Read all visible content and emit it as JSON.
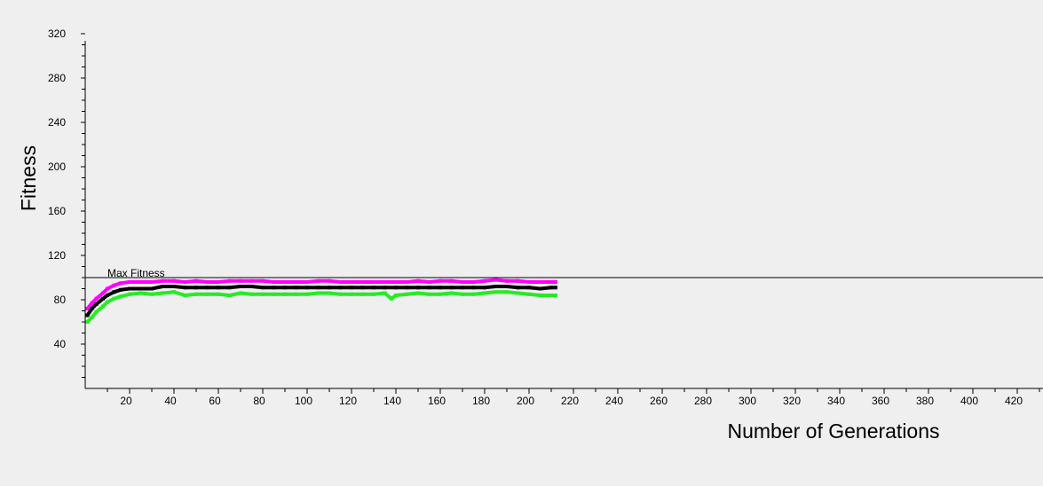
{
  "chart_data": {
    "type": "line",
    "xlabel": "Number of Generations",
    "ylabel": "Fitness",
    "xlim": [
      0,
      430
    ],
    "ylim": [
      0,
      320
    ],
    "x_ticks": [
      20,
      40,
      60,
      80,
      100,
      120,
      140,
      160,
      180,
      200,
      220,
      240,
      260,
      280,
      300,
      320,
      340,
      360,
      380,
      400,
      420
    ],
    "y_ticks": [
      40,
      80,
      120,
      160,
      200,
      240,
      280,
      320
    ],
    "reference_line": {
      "label": "Max Fitness",
      "value": 100
    },
    "grid": false,
    "legend": "none",
    "series": [
      {
        "color": "#ff00ff",
        "points": [
          [
            1,
            72
          ],
          [
            3,
            77
          ],
          [
            5,
            81
          ],
          [
            8,
            86
          ],
          [
            10,
            90
          ],
          [
            13,
            93
          ],
          [
            16,
            95
          ],
          [
            20,
            96
          ],
          [
            25,
            96
          ],
          [
            30,
            96
          ],
          [
            35,
            97
          ],
          [
            40,
            97
          ],
          [
            45,
            96
          ],
          [
            50,
            97
          ],
          [
            55,
            96
          ],
          [
            60,
            96
          ],
          [
            65,
            97
          ],
          [
            70,
            97
          ],
          [
            75,
            97
          ],
          [
            80,
            97
          ],
          [
            85,
            96
          ],
          [
            90,
            96
          ],
          [
            95,
            96
          ],
          [
            100,
            96
          ],
          [
            105,
            97
          ],
          [
            110,
            97
          ],
          [
            115,
            96
          ],
          [
            120,
            96
          ],
          [
            125,
            96
          ],
          [
            130,
            96
          ],
          [
            135,
            96
          ],
          [
            140,
            96
          ],
          [
            145,
            96
          ],
          [
            150,
            97
          ],
          [
            155,
            96
          ],
          [
            160,
            97
          ],
          [
            165,
            97
          ],
          [
            170,
            96
          ],
          [
            175,
            96
          ],
          [
            180,
            97
          ],
          [
            185,
            98
          ],
          [
            190,
            97
          ],
          [
            195,
            97
          ],
          [
            200,
            96
          ],
          [
            205,
            96
          ],
          [
            210,
            96
          ],
          [
            212,
            96
          ]
        ]
      },
      {
        "color": "#000000",
        "points": [
          [
            1,
            66
          ],
          [
            3,
            72
          ],
          [
            5,
            76
          ],
          [
            8,
            81
          ],
          [
            10,
            84
          ],
          [
            13,
            87
          ],
          [
            16,
            89
          ],
          [
            20,
            90
          ],
          [
            25,
            90
          ],
          [
            30,
            90
          ],
          [
            35,
            92
          ],
          [
            40,
            92
          ],
          [
            45,
            91
          ],
          [
            50,
            91
          ],
          [
            55,
            91
          ],
          [
            60,
            91
          ],
          [
            65,
            91
          ],
          [
            70,
            92
          ],
          [
            75,
            92
          ],
          [
            80,
            91
          ],
          [
            85,
            91
          ],
          [
            90,
            91
          ],
          [
            95,
            91
          ],
          [
            100,
            91
          ],
          [
            105,
            91
          ],
          [
            110,
            91
          ],
          [
            115,
            91
          ],
          [
            120,
            91
          ],
          [
            125,
            91
          ],
          [
            130,
            91
          ],
          [
            135,
            91
          ],
          [
            140,
            91
          ],
          [
            145,
            91
          ],
          [
            150,
            91
          ],
          [
            155,
            91
          ],
          [
            160,
            91
          ],
          [
            165,
            91
          ],
          [
            170,
            91
          ],
          [
            175,
            91
          ],
          [
            180,
            91
          ],
          [
            185,
            92
          ],
          [
            190,
            92
          ],
          [
            195,
            91
          ],
          [
            200,
            91
          ],
          [
            205,
            90
          ],
          [
            210,
            91
          ],
          [
            212,
            91
          ]
        ]
      },
      {
        "color": "#22ee22",
        "points": [
          [
            1,
            60
          ],
          [
            3,
            64
          ],
          [
            5,
            69
          ],
          [
            8,
            74
          ],
          [
            10,
            78
          ],
          [
            13,
            81
          ],
          [
            16,
            83
          ],
          [
            20,
            85
          ],
          [
            25,
            86
          ],
          [
            30,
            85
          ],
          [
            35,
            86
          ],
          [
            40,
            87
          ],
          [
            45,
            84
          ],
          [
            50,
            85
          ],
          [
            55,
            85
          ],
          [
            60,
            85
          ],
          [
            65,
            84
          ],
          [
            70,
            86
          ],
          [
            75,
            85
          ],
          [
            80,
            85
          ],
          [
            85,
            85
          ],
          [
            90,
            85
          ],
          [
            95,
            85
          ],
          [
            100,
            85
          ],
          [
            105,
            86
          ],
          [
            110,
            86
          ],
          [
            115,
            85
          ],
          [
            120,
            85
          ],
          [
            125,
            85
          ],
          [
            130,
            85
          ],
          [
            135,
            86
          ],
          [
            138,
            81
          ],
          [
            140,
            84
          ],
          [
            145,
            85
          ],
          [
            150,
            86
          ],
          [
            155,
            85
          ],
          [
            160,
            85
          ],
          [
            165,
            86
          ],
          [
            170,
            85
          ],
          [
            175,
            85
          ],
          [
            180,
            86
          ],
          [
            185,
            87
          ],
          [
            190,
            87
          ],
          [
            195,
            86
          ],
          [
            200,
            85
          ],
          [
            205,
            84
          ],
          [
            210,
            84
          ],
          [
            212,
            84
          ]
        ]
      }
    ]
  }
}
